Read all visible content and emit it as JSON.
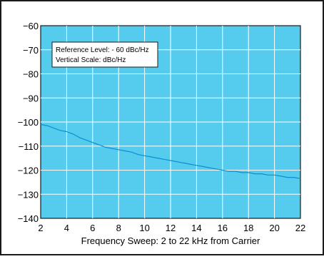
{
  "chart_data": {
    "type": "line",
    "xlabel": "Frequency Sweep: 2 to 22 kHz from Carrier",
    "ylabel": "",
    "xlim": [
      2,
      22
    ],
    "ylim": [
      -140,
      -60
    ],
    "xticks": [
      2,
      4,
      6,
      8,
      10,
      12,
      14,
      16,
      18,
      20,
      22
    ],
    "yticks": [
      -60,
      -70,
      -80,
      -90,
      -100,
      -110,
      -120,
      -130,
      -140
    ],
    "xtick_labels": [
      "2",
      "4",
      "6",
      "8",
      "10",
      "12",
      "14",
      "16",
      "18",
      "20",
      "22"
    ],
    "ytick_labels": [
      "−60",
      "−70",
      "−80",
      "−90",
      "−100",
      "−110",
      "−120",
      "−130",
      "−140"
    ],
    "grid": true,
    "annotation": {
      "lines": [
        "Reference Level: - 60 dBc/Hz",
        "Vertical Scale: dBc/Hz"
      ]
    },
    "series": [
      {
        "x": [
          2.0,
          2.5,
          3.0,
          3.5,
          4.0,
          4.5,
          5.0,
          5.5,
          6.0,
          6.5,
          7.0,
          7.5,
          8.0,
          8.5,
          9.0,
          9.5,
          10.0,
          10.5,
          11.0,
          11.5,
          12.0,
          12.5,
          13.0,
          13.5,
          14.0,
          14.5,
          15.0,
          15.5,
          16.0,
          16.5,
          17.0,
          17.5,
          18.0,
          18.5,
          19.0,
          19.5,
          20.0,
          20.5,
          21.0,
          21.5,
          22.0
        ],
        "values": [
          -101,
          -101.5,
          -102.5,
          -103.5,
          -104,
          -105,
          -106.5,
          -107.5,
          -108.5,
          -109.5,
          -110.5,
          -111,
          -111.5,
          -112,
          -112.5,
          -113.5,
          -114,
          -114.5,
          -115,
          -115.5,
          -116,
          -116.5,
          -117,
          -117.5,
          -118,
          -118.5,
          -119,
          -119.5,
          -120,
          -120.5,
          -120.5,
          -121,
          -121,
          -121.5,
          -121.5,
          -122,
          -122,
          -122.5,
          -123,
          -123,
          -123.5
        ]
      }
    ],
    "colors": {
      "plot_background": "#55ccee",
      "grid": "#ffffff",
      "line": "#0a8fcf"
    }
  }
}
